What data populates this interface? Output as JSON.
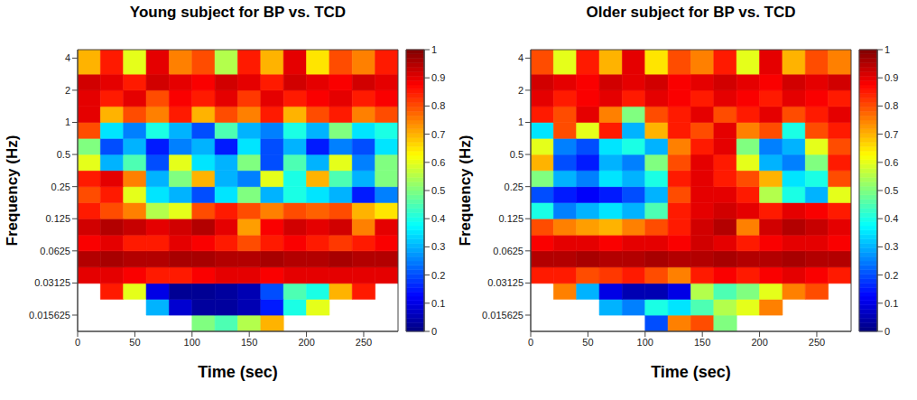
{
  "chart_data": [
    {
      "type": "heatmap",
      "title": "Young subject for BP vs. TCD",
      "x_label": "Time (sec)",
      "y_label": "Frequency (Hz)",
      "log": "y",
      "xlim": [
        0,
        280
      ],
      "xticks": [
        0,
        50,
        100,
        150,
        200,
        250
      ],
      "ylim": [
        0.011,
        4.8
      ],
      "yticks": [
        0.015625,
        0.03125,
        0.0625,
        0.125,
        0.25,
        0.5,
        1,
        2,
        4
      ],
      "x_edges": [
        0,
        20,
        40,
        60,
        80,
        100,
        120,
        140,
        160,
        180,
        200,
        220,
        240,
        260,
        280
      ],
      "y_edges": [
        0.011,
        0.0156,
        0.022,
        0.031,
        0.044,
        0.0625,
        0.088,
        0.125,
        0.177,
        0.25,
        0.354,
        0.5,
        0.707,
        1,
        1.41,
        2,
        2.83,
        4.8
      ],
      "cells": [
        [
          null,
          null,
          null,
          null,
          null,
          0.5,
          0.45,
          0.55,
          0.7,
          null,
          null,
          null,
          null,
          null
        ],
        [
          null,
          null,
          null,
          0.3,
          0.08,
          0.03,
          0.03,
          0.05,
          0.15,
          0.4,
          0.6,
          null,
          null,
          null
        ],
        [
          null,
          0.85,
          0.6,
          0.1,
          0.02,
          0.02,
          0.03,
          0.05,
          0.2,
          0.45,
          0.4,
          0.7,
          0.85,
          null
        ],
        [
          0.9,
          0.9,
          0.88,
          0.85,
          0.85,
          0.88,
          0.9,
          0.9,
          0.88,
          0.9,
          0.9,
          0.9,
          0.9,
          0.9
        ],
        [
          0.95,
          0.96,
          0.95,
          0.95,
          0.96,
          0.96,
          0.95,
          0.95,
          0.96,
          0.95,
          0.95,
          0.96,
          0.95,
          0.95
        ],
        [
          0.88,
          0.9,
          0.85,
          0.85,
          0.9,
          0.88,
          0.85,
          0.8,
          0.85,
          0.88,
          0.85,
          0.82,
          0.85,
          0.88
        ],
        [
          0.92,
          0.95,
          0.93,
          0.9,
          0.92,
          0.95,
          0.9,
          0.72,
          0.88,
          0.92,
          0.9,
          0.92,
          0.75,
          0.9
        ],
        [
          0.85,
          0.8,
          0.75,
          0.55,
          0.6,
          0.8,
          0.85,
          0.8,
          0.75,
          0.8,
          0.78,
          0.8,
          0.7,
          0.65
        ],
        [
          0.8,
          0.85,
          0.6,
          0.35,
          0.3,
          0.2,
          0.35,
          0.5,
          0.3,
          0.4,
          0.35,
          0.3,
          0.15,
          0.25
        ],
        [
          0.85,
          0.9,
          0.75,
          0.3,
          0.5,
          0.7,
          0.3,
          0.25,
          0.6,
          0.4,
          0.7,
          0.45,
          0.3,
          0.5
        ],
        [
          0.6,
          0.3,
          0.45,
          0.2,
          0.6,
          0.35,
          0.3,
          0.5,
          0.2,
          0.45,
          0.3,
          0.6,
          0.25,
          0.5
        ],
        [
          0.5,
          0.2,
          0.3,
          0.15,
          0.25,
          0.3,
          0.15,
          0.35,
          0.2,
          0.3,
          0.15,
          0.25,
          0.2,
          0.35
        ],
        [
          0.8,
          0.35,
          0.25,
          0.4,
          0.3,
          0.2,
          0.45,
          0.3,
          0.25,
          0.4,
          0.3,
          0.5,
          0.35,
          0.4
        ],
        [
          0.9,
          0.7,
          0.8,
          0.75,
          0.85,
          0.7,
          0.8,
          0.75,
          0.85,
          0.7,
          0.8,
          0.85,
          0.75,
          0.8
        ],
        [
          0.9,
          0.85,
          0.9,
          0.8,
          0.88,
          0.85,
          0.9,
          0.82,
          0.9,
          0.85,
          0.88,
          0.9,
          0.85,
          0.88
        ],
        [
          0.92,
          0.9,
          0.85,
          0.92,
          0.9,
          0.88,
          0.92,
          0.9,
          0.85,
          0.92,
          0.9,
          0.88,
          0.92,
          0.9
        ],
        [
          0.7,
          0.85,
          0.6,
          0.9,
          0.75,
          0.8,
          0.55,
          0.85,
          0.7,
          0.9,
          0.65,
          0.8,
          0.75,
          0.85
        ]
      ],
      "colorbar": {
        "range": [
          0,
          1
        ],
        "ticks": [
          0,
          0.1,
          0.2,
          0.3,
          0.4,
          0.5,
          0.6,
          0.7,
          0.8,
          0.9,
          1
        ]
      }
    },
    {
      "type": "heatmap",
      "title": "Older subject for BP vs. TCD",
      "x_label": "Time (sec)",
      "y_label": "Frequency (Hz)",
      "log": "y",
      "xlim": [
        0,
        280
      ],
      "xticks": [
        0,
        50,
        100,
        150,
        200,
        250
      ],
      "ylim": [
        0.011,
        4.8
      ],
      "yticks": [
        0.015625,
        0.03125,
        0.0625,
        0.125,
        0.25,
        0.5,
        1,
        2,
        4
      ],
      "x_edges": [
        0,
        20,
        40,
        60,
        80,
        100,
        120,
        140,
        160,
        180,
        200,
        220,
        240,
        260,
        280
      ],
      "y_edges": [
        0.011,
        0.0156,
        0.022,
        0.031,
        0.044,
        0.0625,
        0.088,
        0.125,
        0.177,
        0.25,
        0.354,
        0.5,
        0.707,
        1,
        1.41,
        2,
        2.83,
        4.8
      ],
      "cells": [
        [
          null,
          null,
          null,
          null,
          null,
          0.2,
          0.75,
          0.8,
          0.5,
          null,
          null,
          null,
          null,
          null
        ],
        [
          null,
          null,
          null,
          0.3,
          0.25,
          0.4,
          0.35,
          0.45,
          0.55,
          0.6,
          0.75,
          null,
          null,
          null
        ],
        [
          null,
          0.75,
          0.3,
          0.1,
          0.05,
          0.05,
          0.1,
          0.55,
          0.45,
          0.5,
          0.6,
          0.75,
          0.8,
          null
        ],
        [
          0.85,
          0.85,
          0.8,
          0.82,
          0.85,
          0.8,
          0.75,
          0.85,
          0.88,
          0.85,
          0.88,
          0.9,
          0.88,
          0.85
        ],
        [
          0.95,
          0.95,
          0.96,
          0.95,
          0.95,
          0.96,
          0.95,
          0.95,
          0.96,
          0.95,
          0.95,
          0.96,
          0.95,
          0.95
        ],
        [
          0.88,
          0.9,
          0.9,
          0.88,
          0.9,
          0.9,
          0.88,
          0.92,
          0.9,
          0.85,
          0.88,
          0.9,
          0.9,
          0.88
        ],
        [
          0.8,
          0.75,
          0.72,
          0.7,
          0.75,
          0.8,
          0.85,
          0.92,
          0.95,
          0.75,
          0.92,
          0.95,
          0.93,
          0.9
        ],
        [
          0.4,
          0.25,
          0.3,
          0.35,
          0.3,
          0.45,
          0.85,
          0.9,
          0.92,
          0.9,
          0.85,
          0.9,
          0.88,
          0.85
        ],
        [
          0.2,
          0.15,
          0.12,
          0.15,
          0.2,
          0.3,
          0.8,
          0.9,
          0.9,
          0.85,
          0.55,
          0.4,
          0.3,
          0.6
        ],
        [
          0.5,
          0.3,
          0.25,
          0.35,
          0.3,
          0.4,
          0.85,
          0.9,
          0.85,
          0.8,
          0.7,
          0.35,
          0.4,
          0.8
        ],
        [
          0.7,
          0.2,
          0.15,
          0.3,
          0.25,
          0.5,
          0.8,
          0.9,
          0.85,
          0.6,
          0.3,
          0.25,
          0.5,
          0.85
        ],
        [
          0.6,
          0.25,
          0.2,
          0.35,
          0.4,
          0.3,
          0.75,
          0.85,
          0.9,
          0.5,
          0.25,
          0.3,
          0.6,
          0.8
        ],
        [
          0.35,
          0.8,
          0.6,
          0.85,
          0.3,
          0.7,
          0.85,
          0.8,
          0.9,
          0.75,
          0.8,
          0.4,
          0.8,
          0.85
        ],
        [
          0.85,
          0.8,
          0.9,
          0.75,
          0.5,
          0.8,
          0.85,
          0.9,
          0.8,
          0.85,
          0.9,
          0.8,
          0.85,
          0.9
        ],
        [
          0.9,
          0.85,
          0.88,
          0.9,
          0.85,
          0.9,
          0.88,
          0.85,
          0.9,
          0.88,
          0.85,
          0.9,
          0.88,
          0.85
        ],
        [
          0.92,
          0.9,
          0.88,
          0.92,
          0.9,
          0.92,
          0.88,
          0.9,
          0.92,
          0.9,
          0.88,
          0.92,
          0.9,
          0.92
        ],
        [
          0.8,
          0.6,
          0.85,
          0.7,
          0.9,
          0.65,
          0.8,
          0.75,
          0.85,
          0.6,
          0.9,
          0.7,
          0.8,
          0.75
        ]
      ],
      "colorbar": {
        "range": [
          0,
          1
        ],
        "ticks": [
          0,
          0.1,
          0.2,
          0.3,
          0.4,
          0.5,
          0.6,
          0.7,
          0.8,
          0.9,
          1
        ]
      }
    }
  ]
}
